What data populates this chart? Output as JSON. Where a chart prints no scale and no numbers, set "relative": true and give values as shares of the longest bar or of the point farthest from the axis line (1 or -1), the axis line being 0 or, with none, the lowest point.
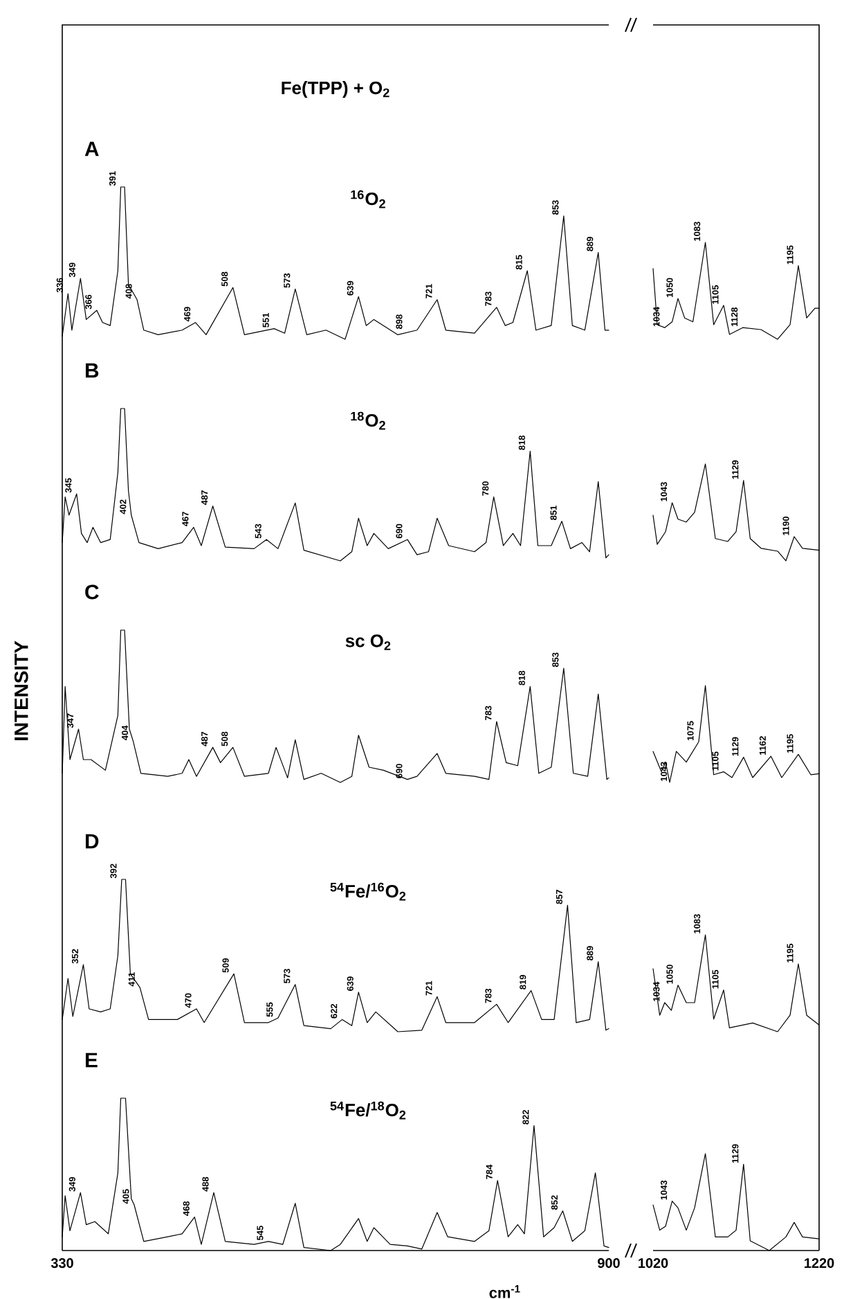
{
  "chart_data": [
    {
      "type": "line",
      "relative": true,
      "color": "#000000",
      "title": "Fe(TPP) + O$_{2}$",
      "subtitle": "$^{16}$O$_{2}$",
      "xlim": [
        330,
        900
      ],
      "tick_labels": false,
      "x": [
        330,
        336,
        340,
        349,
        355,
        366,
        372,
        380,
        388,
        391,
        395,
        399,
        408,
        415,
        430,
        455,
        469,
        480,
        508,
        520,
        551,
        562,
        573,
        585,
        605,
        625,
        639,
        647,
        655,
        680,
        700,
        721,
        730,
        760,
        783,
        792,
        800,
        815,
        824,
        840,
        853,
        862,
        875,
        889,
        896,
        900
      ],
      "values": [
        0.02,
        0.3,
        0.06,
        0.4,
        0.13,
        0.19,
        0.11,
        0.09,
        0.45,
        1.0,
        1.0,
        0.36,
        0.26,
        0.06,
        0.03,
        0.06,
        0.11,
        0.03,
        0.34,
        0.03,
        0.07,
        0.04,
        0.33,
        0.03,
        0.06,
        0.0,
        0.28,
        0.09,
        0.13,
        0.03,
        0.06,
        0.26,
        0.06,
        0.04,
        0.21,
        0.09,
        0.11,
        0.45,
        0.06,
        0.09,
        0.81,
        0.09,
        0.06,
        0.57,
        0.06,
        0.06
      ],
      "annotations": [
        "A",
        {
          "text": "336",
          "x": 336,
          "y": 0.3
        },
        {
          "text": "349",
          "x": 349,
          "y": 0.4
        },
        {
          "text": "366",
          "x": 366,
          "y": 0.19
        },
        {
          "text": "391",
          "x": 391,
          "y": 1.0
        },
        {
          "text": "408",
          "x": 408,
          "y": 0.26
        },
        {
          "text": "469",
          "x": 469,
          "y": 0.11
        },
        {
          "text": "508",
          "x": 508,
          "y": 0.34
        },
        {
          "text": "551",
          "x": 551,
          "y": 0.07
        },
        {
          "text": "573",
          "x": 573,
          "y": 0.33
        },
        {
          "text": "639",
          "x": 639,
          "y": 0.28
        },
        {
          "text": "898",
          "x": 690,
          "y": 0.06
        },
        {
          "text": "721",
          "x": 721,
          "y": 0.26
        },
        {
          "text": "783",
          "x": 783,
          "y": 0.21
        },
        {
          "text": "815",
          "x": 815,
          "y": 0.45
        },
        {
          "text": "853",
          "x": 853,
          "y": 0.81
        },
        {
          "text": "889",
          "x": 889,
          "y": 0.57
        }
      ]
    },
    {
      "type": "line",
      "relative": true,
      "color": "#000000",
      "xlim": [
        1020,
        1220
      ],
      "tick_labels": false,
      "x": [
        1020,
        1025,
        1034,
        1043,
        1050,
        1058,
        1068,
        1083,
        1093,
        1105,
        1112,
        1128,
        1150,
        1170,
        1185,
        1195,
        1205,
        1215,
        1220
      ],
      "values": [
        0.73,
        0.15,
        0.12,
        0.18,
        0.42,
        0.22,
        0.18,
        1.0,
        0.15,
        0.35,
        0.05,
        0.12,
        0.1,
        0.0,
        0.15,
        0.76,
        0.22,
        0.32,
        0.32
      ],
      "annotations": [
        {
          "text": "1034",
          "x": 1034,
          "y": 0.12
        },
        {
          "text": "1050",
          "x": 1050,
          "y": 0.42
        },
        {
          "text": "1083",
          "x": 1083,
          "y": 1.0
        },
        {
          "text": "1105",
          "x": 1105,
          "y": 0.35
        },
        {
          "text": "1128",
          "x": 1128,
          "y": 0.12
        },
        {
          "text": "1195",
          "x": 1195,
          "y": 0.76
        }
      ]
    },
    {
      "type": "line",
      "relative": true,
      "color": "#000000",
      "subtitle": "$^{18}$O$_{2}$",
      "xlim": [
        330,
        900
      ],
      "tick_labels": false,
      "x": [
        330,
        333,
        337,
        345,
        350,
        356,
        362,
        370,
        380,
        388,
        391,
        395,
        399,
        402,
        410,
        430,
        455,
        467,
        475,
        487,
        500,
        530,
        543,
        555,
        573,
        582,
        620,
        632,
        639,
        648,
        655,
        670,
        690,
        700,
        712,
        721,
        733,
        760,
        772,
        780,
        790,
        800,
        808,
        818,
        826,
        840,
        851,
        860,
        872,
        880,
        889,
        897,
        900
      ],
      "values": [
        0.12,
        0.42,
        0.3,
        0.44,
        0.18,
        0.12,
        0.22,
        0.12,
        0.14,
        0.58,
        1.0,
        1.0,
        0.46,
        0.3,
        0.12,
        0.08,
        0.12,
        0.22,
        0.1,
        0.36,
        0.09,
        0.08,
        0.14,
        0.08,
        0.38,
        0.07,
        0.0,
        0.06,
        0.28,
        0.1,
        0.18,
        0.08,
        0.14,
        0.04,
        0.06,
        0.28,
        0.1,
        0.06,
        0.12,
        0.42,
        0.1,
        0.18,
        0.1,
        0.72,
        0.1,
        0.1,
        0.26,
        0.08,
        0.12,
        0.06,
        0.52,
        0.02,
        0.04
      ],
      "annotations": [
        "B",
        {
          "text": "345",
          "x": 345,
          "y": 0.44
        },
        {
          "text": "402",
          "x": 402,
          "y": 0.3
        },
        {
          "text": "467",
          "x": 467,
          "y": 0.22
        },
        {
          "text": "487",
          "x": 487,
          "y": 0.36
        },
        {
          "text": "543",
          "x": 543,
          "y": 0.14
        },
        {
          "text": "690",
          "x": 690,
          "y": 0.14
        },
        {
          "text": "780",
          "x": 780,
          "y": 0.42
        },
        {
          "text": "818",
          "x": 818,
          "y": 0.72
        },
        {
          "text": "851",
          "x": 851,
          "y": 0.26
        }
      ]
    },
    {
      "type": "line",
      "relative": true,
      "color": "#000000",
      "xlim": [
        1020,
        1220
      ],
      "tick_labels": false,
      "x": [
        1020,
        1025,
        1035,
        1043,
        1050,
        1060,
        1070,
        1083,
        1095,
        1110,
        1120,
        1129,
        1137,
        1150,
        1170,
        1180,
        1190,
        1200,
        1220
      ],
      "values": [
        0.47,
        0.17,
        0.3,
        0.6,
        0.43,
        0.4,
        0.5,
        1.0,
        0.23,
        0.2,
        0.3,
        0.83,
        0.23,
        0.13,
        0.1,
        0.0,
        0.25,
        0.13,
        0.11
      ],
      "annotations": [
        {
          "text": "1043",
          "x": 1043,
          "y": 0.6
        },
        {
          "text": "1129",
          "x": 1129,
          "y": 0.83
        },
        {
          "text": "1190",
          "x": 1190,
          "y": 0.25
        }
      ]
    },
    {
      "type": "line",
      "relative": true,
      "color": "#000000",
      "subtitle": "sc O$_{2}$",
      "ylabel": "INTENSITY",
      "xlim": [
        330,
        900
      ],
      "tick_labels": false,
      "x": [
        330,
        333,
        338,
        347,
        352,
        360,
        375,
        388,
        391,
        395,
        400,
        404,
        412,
        440,
        455,
        462,
        470,
        487,
        495,
        508,
        520,
        545,
        553,
        565,
        573,
        582,
        600,
        620,
        632,
        639,
        650,
        665,
        690,
        700,
        721,
        730,
        760,
        775,
        783,
        793,
        805,
        818,
        827,
        840,
        853,
        863,
        878,
        889,
        898,
        900
      ],
      "values": [
        0.06,
        0.63,
        0.15,
        0.35,
        0.15,
        0.15,
        0.08,
        0.44,
        1.0,
        1.0,
        0.35,
        0.27,
        0.06,
        0.04,
        0.06,
        0.15,
        0.04,
        0.23,
        0.13,
        0.23,
        0.04,
        0.06,
        0.23,
        0.03,
        0.28,
        0.02,
        0.06,
        0.0,
        0.04,
        0.31,
        0.1,
        0.08,
        0.02,
        0.04,
        0.19,
        0.06,
        0.04,
        0.02,
        0.4,
        0.13,
        0.11,
        0.63,
        0.06,
        0.1,
        0.75,
        0.06,
        0.04,
        0.58,
        0.02,
        0.03
      ],
      "annotations": [
        "C",
        {
          "text": "347",
          "x": 347,
          "y": 0.35
        },
        {
          "text": "404",
          "x": 404,
          "y": 0.27
        },
        {
          "text": "487",
          "x": 487,
          "y": 0.23
        },
        {
          "text": "508",
          "x": 508,
          "y": 0.23
        },
        {
          "text": "690",
          "x": 690,
          "y": 0.02
        },
        {
          "text": "783",
          "x": 783,
          "y": 0.4
        },
        {
          "text": "818",
          "x": 818,
          "y": 0.63
        },
        {
          "text": "853",
          "x": 853,
          "y": 0.75
        }
      ]
    },
    {
      "type": "line",
      "relative": true,
      "color": "#000000",
      "xlim": [
        1020,
        1220
      ],
      "tick_labels": false,
      "x": [
        1020,
        1030,
        1035,
        1040,
        1048,
        1060,
        1075,
        1083,
        1093,
        1105,
        1115,
        1129,
        1140,
        1162,
        1175,
        1195,
        1210,
        1220
      ],
      "values": [
        0.32,
        0.11,
        0.21,
        0.0,
        0.32,
        0.21,
        0.42,
        1.0,
        0.08,
        0.11,
        0.05,
        0.26,
        0.05,
        0.27,
        0.05,
        0.29,
        0.08,
        0.09
      ],
      "annotations": [
        {
          "text": "1043",
          "x": 1043,
          "y": 0.0
        },
        {
          "text": "1075",
          "x": 1075,
          "y": 0.42
        },
        {
          "text": "1105",
          "x": 1105,
          "y": 0.11
        },
        {
          "text": "1129",
          "x": 1129,
          "y": 0.26
        },
        {
          "text": "1162",
          "x": 1162,
          "y": 0.27
        },
        {
          "text": "1195",
          "x": 1195,
          "y": 0.29
        }
      ]
    },
    {
      "type": "line",
      "relative": true,
      "color": "#000000",
      "subtitle": "$^{54}$Fe/$^{16}$O$_{2}$",
      "xlim": [
        330,
        900
      ],
      "tick_labels": false,
      "x": [
        330,
        336,
        341,
        352,
        358,
        370,
        380,
        388,
        392,
        396,
        401,
        411,
        420,
        450,
        470,
        478,
        509,
        520,
        545,
        555,
        573,
        582,
        610,
        622,
        632,
        639,
        648,
        657,
        680,
        705,
        721,
        730,
        760,
        783,
        795,
        819,
        830,
        843,
        857,
        866,
        880,
        889,
        897,
        900
      ],
      "values": [
        0.08,
        0.35,
        0.1,
        0.44,
        0.15,
        0.13,
        0.15,
        0.5,
        1.0,
        1.0,
        0.38,
        0.29,
        0.08,
        0.08,
        0.15,
        0.06,
        0.38,
        0.06,
        0.06,
        0.09,
        0.31,
        0.04,
        0.02,
        0.08,
        0.04,
        0.26,
        0.06,
        0.13,
        0.0,
        0.01,
        0.23,
        0.06,
        0.06,
        0.18,
        0.06,
        0.27,
        0.08,
        0.08,
        0.83,
        0.06,
        0.08,
        0.46,
        0.01,
        0.02
      ],
      "annotations": [
        "D",
        {
          "text": "352",
          "x": 352,
          "y": 0.44
        },
        {
          "text": "392",
          "x": 392,
          "y": 1.0
        },
        {
          "text": "411",
          "x": 411,
          "y": 0.29
        },
        {
          "text": "470",
          "x": 470,
          "y": 0.15
        },
        {
          "text": "509",
          "x": 509,
          "y": 0.38
        },
        {
          "text": "555",
          "x": 555,
          "y": 0.09
        },
        {
          "text": "573",
          "x": 573,
          "y": 0.31
        },
        {
          "text": "622",
          "x": 622,
          "y": 0.08
        },
        {
          "text": "639",
          "x": 639,
          "y": 0.26
        },
        {
          "text": "721",
          "x": 721,
          "y": 0.23
        },
        {
          "text": "783",
          "x": 783,
          "y": 0.18
        },
        {
          "text": "819",
          "x": 819,
          "y": 0.27
        },
        {
          "text": "857",
          "x": 857,
          "y": 0.83
        },
        {
          "text": "889",
          "x": 889,
          "y": 0.46
        }
      ]
    },
    {
      "type": "line",
      "relative": true,
      "color": "#000000",
      "xlim": [
        1020,
        1220
      ],
      "tick_labels": false,
      "x": [
        1020,
        1028,
        1034,
        1042,
        1050,
        1060,
        1070,
        1083,
        1093,
        1105,
        1112,
        1140,
        1170,
        1185,
        1195,
        1205,
        1220
      ],
      "values": [
        0.65,
        0.17,
        0.3,
        0.22,
        0.48,
        0.3,
        0.3,
        1.0,
        0.13,
        0.43,
        0.04,
        0.09,
        0.0,
        0.17,
        0.7,
        0.17,
        0.07
      ],
      "annotations": [
        {
          "text": "1034",
          "x": 1034,
          "y": 0.3
        },
        {
          "text": "1050",
          "x": 1050,
          "y": 0.48
        },
        {
          "text": "1083",
          "x": 1083,
          "y": 1.0
        },
        {
          "text": "1105",
          "x": 1105,
          "y": 0.43
        },
        {
          "text": "1195",
          "x": 1195,
          "y": 0.7
        }
      ]
    },
    {
      "type": "line",
      "relative": true,
      "color": "#000000",
      "subtitle": "$^{54}$Fe/$^{18}$O$_{2}$",
      "xlabel": "cm$^{-1}$",
      "xlim": [
        330,
        900
      ],
      "xticks": [
        330,
        900
      ],
      "tick_labels": "x",
      "x": [
        330,
        333,
        338,
        349,
        355,
        364,
        378,
        388,
        391,
        396,
        402,
        405,
        415,
        440,
        455,
        468,
        475,
        488,
        500,
        530,
        545,
        560,
        573,
        582,
        610,
        620,
        639,
        648,
        655,
        672,
        690,
        705,
        721,
        732,
        760,
        775,
        784,
        795,
        805,
        812,
        822,
        832,
        843,
        852,
        862,
        875,
        886,
        895,
        900
      ],
      "values": [
        0.09,
        0.36,
        0.13,
        0.38,
        0.17,
        0.19,
        0.11,
        0.51,
        1.0,
        1.0,
        0.34,
        0.3,
        0.06,
        0.09,
        0.11,
        0.22,
        0.04,
        0.38,
        0.06,
        0.04,
        0.06,
        0.04,
        0.31,
        0.02,
        0.0,
        0.04,
        0.21,
        0.06,
        0.15,
        0.04,
        0.03,
        0.01,
        0.25,
        0.09,
        0.06,
        0.13,
        0.46,
        0.09,
        0.17,
        0.11,
        0.82,
        0.09,
        0.15,
        0.26,
        0.06,
        0.13,
        0.51,
        0.03,
        0.02
      ],
      "annotations": [
        "E",
        {
          "text": "349",
          "x": 349,
          "y": 0.38
        },
        {
          "text": "405",
          "x": 405,
          "y": 0.3
        },
        {
          "text": "468",
          "x": 468,
          "y": 0.22
        },
        {
          "text": "488",
          "x": 488,
          "y": 0.38
        },
        {
          "text": "545",
          "x": 545,
          "y": 0.06
        },
        {
          "text": "784",
          "x": 784,
          "y": 0.46
        },
        {
          "text": "822",
          "x": 822,
          "y": 0.82
        },
        {
          "text": "852",
          "x": 852,
          "y": 0.26
        }
      ]
    },
    {
      "type": "line",
      "relative": true,
      "color": "#000000",
      "xlim": [
        1020,
        1220
      ],
      "xticks": [
        1020,
        1220
      ],
      "tick_labels": "x",
      "x": [
        1020,
        1028,
        1035,
        1043,
        1050,
        1060,
        1070,
        1083,
        1095,
        1110,
        1120,
        1129,
        1137,
        1160,
        1180,
        1190,
        1200,
        1220
      ],
      "values": [
        0.47,
        0.21,
        0.25,
        0.51,
        0.44,
        0.21,
        0.44,
        1.0,
        0.14,
        0.14,
        0.21,
        0.89,
        0.1,
        0.0,
        0.14,
        0.29,
        0.14,
        0.12
      ],
      "annotations": [
        {
          "text": "1043",
          "x": 1043,
          "y": 0.51
        },
        {
          "text": "1129",
          "x": 1129,
          "y": 0.89
        }
      ]
    }
  ]
}
